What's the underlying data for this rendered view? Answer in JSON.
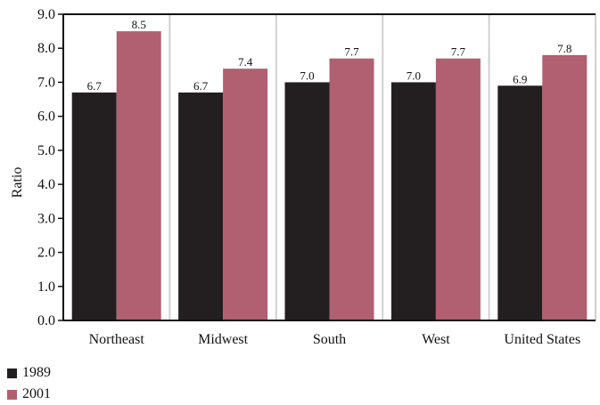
{
  "chart_data": {
    "type": "bar",
    "title": "",
    "xlabel": "",
    "ylabel": "Ratio",
    "ylim": [
      0,
      9
    ],
    "yticks": [
      "0.0",
      "1.0",
      "2.0",
      "3.0",
      "4.0",
      "5.0",
      "6.0",
      "7.0",
      "8.0",
      "9.0"
    ],
    "categories": [
      "Northeast",
      "Midwest",
      "South",
      "West",
      "United States"
    ],
    "series": [
      {
        "name": "1989",
        "values": [
          6.7,
          6.7,
          7.0,
          7.0,
          6.9
        ],
        "labels": [
          "6.7",
          "6.7",
          "7.0",
          "7.0",
          "6.9"
        ],
        "color": "#231f20"
      },
      {
        "name": "2001",
        "values": [
          8.5,
          7.4,
          7.7,
          7.7,
          7.8
        ],
        "labels": [
          "8.5",
          "7.4",
          "7.7",
          "7.7",
          "7.8"
        ],
        "color": "#b06070"
      }
    ],
    "grid": "vertical separators",
    "legend": "bottom-left"
  }
}
